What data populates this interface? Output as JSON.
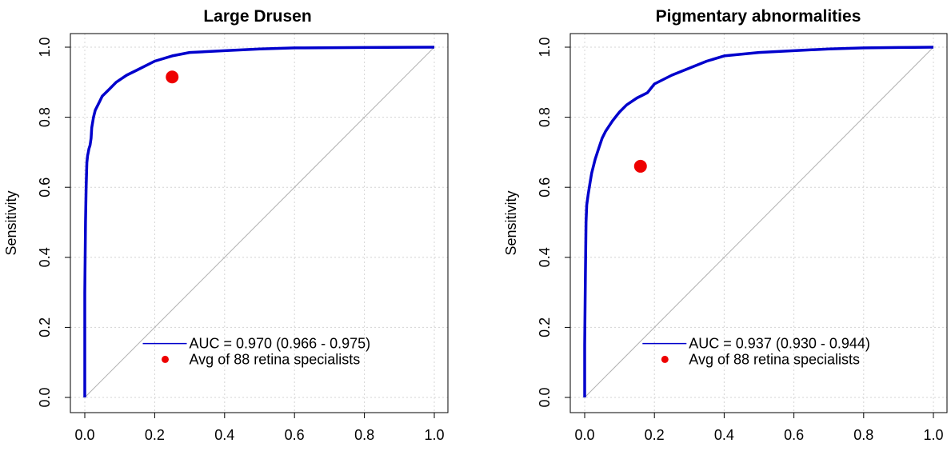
{
  "colors": {
    "roc": "#0000cc",
    "point": "#ee0000",
    "diag": "#b0b0b0",
    "grid": "#d4d4d4"
  },
  "chart_data": [
    {
      "type": "line",
      "title": "Large Drusen",
      "ylabel": "Sensitivity",
      "xlabel": "",
      "xlim": [
        0,
        1
      ],
      "ylim": [
        0,
        1
      ],
      "x_ticks": [
        "0.0",
        "0.2",
        "0.4",
        "0.6",
        "0.8",
        "1.0"
      ],
      "y_ticks": [
        "0.0",
        "0.2",
        "0.4",
        "0.6",
        "0.8",
        "1.0"
      ],
      "grid": true,
      "legend_position": "bottom-right",
      "series": [
        {
          "name": "AUC = 0.970 (0.966 - 0.975)",
          "x": [
            0,
            0,
            0.002,
            0.004,
            0.006,
            0.008,
            0.01,
            0.012,
            0.015,
            0.018,
            0.02,
            0.025,
            0.03,
            0.04,
            0.05,
            0.07,
            0.09,
            0.12,
            0.15,
            0.2,
            0.25,
            0.3,
            0.4,
            0.5,
            0.6,
            0.8,
            1.0
          ],
          "y": [
            0,
            0.3,
            0.5,
            0.6,
            0.67,
            0.69,
            0.7,
            0.71,
            0.72,
            0.74,
            0.77,
            0.8,
            0.82,
            0.84,
            0.86,
            0.88,
            0.9,
            0.92,
            0.935,
            0.96,
            0.975,
            0.985,
            0.99,
            0.995,
            0.998,
            0.999,
            1.0
          ]
        }
      ],
      "points": [
        {
          "name": "Avg of 88 retina specialists",
          "x": 0.25,
          "y": 0.915
        }
      ]
    },
    {
      "type": "line",
      "title": "Pigmentary abnormalities",
      "ylabel": "Sensitivity",
      "xlabel": "",
      "xlim": [
        0,
        1
      ],
      "ylim": [
        0,
        1
      ],
      "x_ticks": [
        "0.0",
        "0.2",
        "0.4",
        "0.6",
        "0.8",
        "1.0"
      ],
      "y_ticks": [
        "0.0",
        "0.2",
        "0.4",
        "0.6",
        "0.8",
        "1.0"
      ],
      "grid": true,
      "legend_position": "bottom-right",
      "series": [
        {
          "name": "AUC = 0.937 (0.930 - 0.944)",
          "x": [
            0,
            0,
            0.002,
            0.004,
            0.006,
            0.01,
            0.015,
            0.02,
            0.03,
            0.04,
            0.05,
            0.06,
            0.08,
            0.1,
            0.12,
            0.15,
            0.18,
            0.2,
            0.25,
            0.3,
            0.35,
            0.4,
            0.5,
            0.6,
            0.7,
            0.8,
            0.9,
            1.0
          ],
          "y": [
            0,
            0.15,
            0.35,
            0.5,
            0.55,
            0.58,
            0.61,
            0.64,
            0.68,
            0.71,
            0.74,
            0.76,
            0.79,
            0.815,
            0.835,
            0.855,
            0.87,
            0.895,
            0.92,
            0.94,
            0.96,
            0.975,
            0.985,
            0.99,
            0.995,
            0.998,
            0.999,
            1.0
          ]
        }
      ],
      "points": [
        {
          "name": "Avg of 88 retina specialists",
          "x": 0.16,
          "y": 0.66
        }
      ]
    }
  ]
}
